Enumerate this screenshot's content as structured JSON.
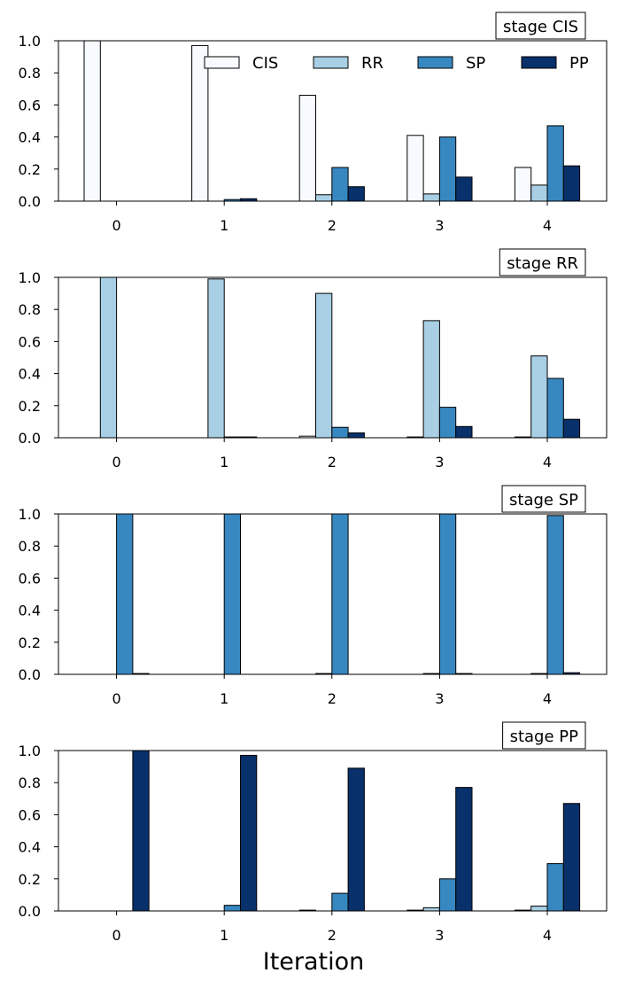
{
  "chart_data": {
    "type": "bar",
    "xlabel": "Iteration",
    "categories": [
      "0",
      "1",
      "2",
      "3",
      "4"
    ],
    "ylim": [
      0,
      1.0
    ],
    "yticks": [
      "0.0",
      "0.2",
      "0.4",
      "0.6",
      "0.8",
      "1.0"
    ],
    "ytick_values": [
      0.0,
      0.2,
      0.4,
      0.6,
      0.8,
      1.0
    ],
    "legend": [
      "CIS",
      "RR",
      "SP",
      "PP"
    ],
    "legend_location": "top-right (first panel)",
    "colors": {
      "CIS": "#f7fbff",
      "RR": "#a9cfe5",
      "SP": "#3787c0",
      "PP": "#08306b"
    },
    "panels": [
      {
        "title": "stage CIS",
        "series": [
          {
            "name": "CIS",
            "values": [
              1.0,
              0.97,
              0.66,
              0.41,
              0.21
            ]
          },
          {
            "name": "RR",
            "values": [
              0.0,
              0.0,
              0.04,
              0.045,
              0.1
            ]
          },
          {
            "name": "SP",
            "values": [
              0.0,
              0.01,
              0.21,
              0.4,
              0.47
            ]
          },
          {
            "name": "PP",
            "values": [
              0.0,
              0.015,
              0.09,
              0.15,
              0.22
            ]
          }
        ]
      },
      {
        "title": "stage RR",
        "series": [
          {
            "name": "CIS",
            "values": [
              0.0,
              0.0,
              0.01,
              0.005,
              0.005
            ]
          },
          {
            "name": "RR",
            "values": [
              1.0,
              0.99,
              0.9,
              0.73,
              0.51
            ]
          },
          {
            "name": "SP",
            "values": [
              0.0,
              0.005,
              0.065,
              0.19,
              0.37
            ]
          },
          {
            "name": "PP",
            "values": [
              0.0,
              0.005,
              0.03,
              0.07,
              0.115
            ]
          }
        ]
      },
      {
        "title": "stage SP",
        "series": [
          {
            "name": "CIS",
            "values": [
              0.0,
              0.0,
              0.0,
              0.0,
              0.0
            ]
          },
          {
            "name": "RR",
            "values": [
              0.0,
              0.0,
              0.005,
              0.005,
              0.005
            ]
          },
          {
            "name": "SP",
            "values": [
              1.0,
              1.0,
              1.0,
              1.0,
              0.99
            ]
          },
          {
            "name": "PP",
            "values": [
              0.005,
              0.0,
              0.0,
              0.005,
              0.01
            ]
          }
        ]
      },
      {
        "title": "stage PP",
        "series": [
          {
            "name": "CIS",
            "values": [
              0.0,
              0.0,
              0.005,
              0.005,
              0.005
            ]
          },
          {
            "name": "RR",
            "values": [
              0.0,
              0.0,
              0.0,
              0.02,
              0.03
            ]
          },
          {
            "name": "SP",
            "values": [
              0.0,
              0.035,
              0.11,
              0.2,
              0.295
            ]
          },
          {
            "name": "PP",
            "values": [
              1.0,
              0.97,
              0.89,
              0.77,
              0.67
            ]
          }
        ]
      }
    ]
  }
}
